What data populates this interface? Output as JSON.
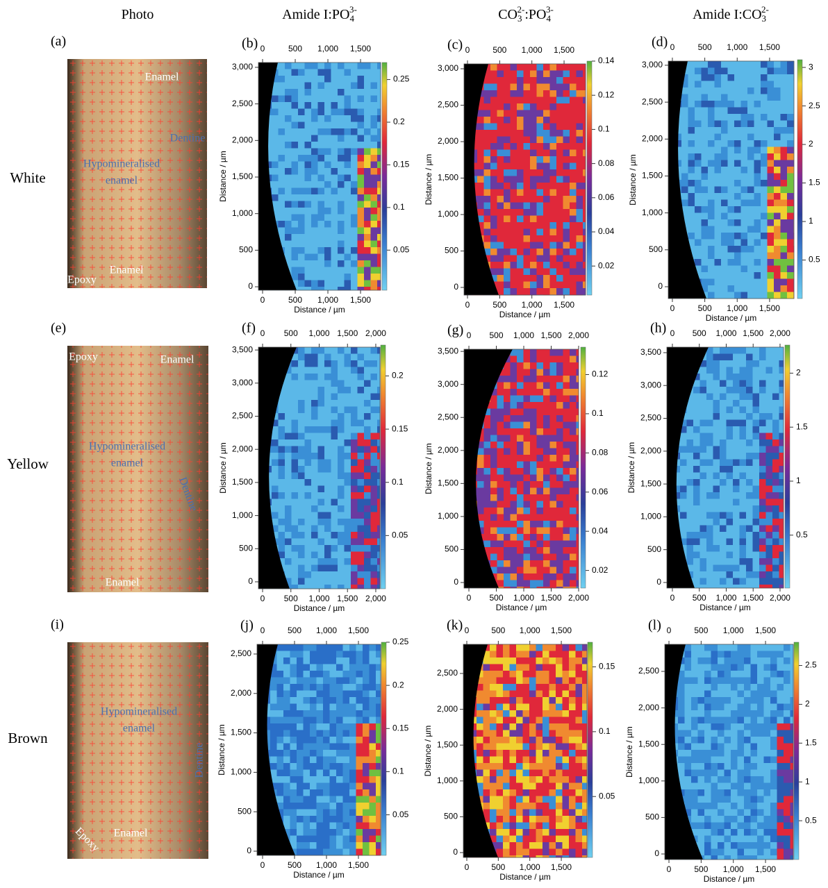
{
  "column_headers": [
    [
      {
        "text": "Photo",
        "style": "base"
      }
    ],
    [
      {
        "text": "Amide I:PO",
        "style": "base"
      },
      {
        "text": "4",
        "style": "sub"
      },
      {
        "text": "3-",
        "style": "sup"
      }
    ],
    [
      {
        "text": "CO",
        "style": "base"
      },
      {
        "text": "3",
        "style": "sub"
      },
      {
        "text": "2-",
        "style": "sup"
      },
      {
        "text": ":PO",
        "style": "base"
      },
      {
        "text": "4",
        "style": "sub"
      },
      {
        "text": "3-",
        "style": "sup"
      }
    ],
    [
      {
        "text": "Amide I:CO",
        "style": "base"
      },
      {
        "text": "3",
        "style": "sub"
      },
      {
        "text": "2-",
        "style": "sup"
      }
    ]
  ],
  "rows": [
    {
      "label": "White",
      "photo": {
        "letter": "(a)",
        "annotations": [
          "Enamel",
          "Dentine",
          "Hypomineralised",
          "enamel",
          "Enamel",
          "Epoxy"
        ]
      },
      "maps": [
        {
          "letter": "(b)",
          "xlabel": "Distance / µm",
          "ylabel": "Distance / µm",
          "xlim": [
            -64,
            1808
          ],
          "xticks": [
            0,
            500,
            {
              "value": 1000,
              "label": "1,000"
            },
            {
              "value": 1500,
              "label": "1,500"
            }
          ],
          "ylim": [
            -47,
            3066
          ],
          "yticks": [
            0,
            500,
            {
              "value": 1000,
              "label": "1,000"
            },
            {
              "value": 1500,
              "label": "1,500"
            },
            {
              "value": 2000,
              "label": "2,000"
            },
            {
              "value": 2500,
              "label": "2,500"
            },
            {
              "value": 3000,
              "label": "3,000"
            }
          ],
          "colorbar": {
            "lim": [
              0.003,
              0.27
            ],
            "ticks": [
              0.05,
              0.1,
              0.15,
              0.2,
              0.25
            ]
          }
        },
        {
          "letter": "(c)",
          "xlabel": "Distance / µm",
          "ylabel": "Distance / µm",
          "xlim": [
            -54,
            1834
          ],
          "xticks": [
            0,
            500,
            {
              "value": 1000,
              "label": "1,000"
            },
            {
              "value": 1500,
              "label": "1,500"
            }
          ],
          "ylim": [
            -105,
            3067
          ],
          "yticks": [
            0,
            500,
            {
              "value": 1000,
              "label": "1,000"
            },
            {
              "value": 1500,
              "label": "1,500"
            },
            {
              "value": 2000,
              "label": "2,000"
            },
            {
              "value": 2500,
              "label": "2,500"
            },
            {
              "value": 3000,
              "label": "3,000"
            }
          ],
          "colorbar": {
            "lim": [
              0.003,
              0.14
            ],
            "ticks": [
              0.02,
              0.04,
              0.06,
              0.08,
              0.1,
              0.12,
              0.14
            ]
          }
        },
        {
          "letter": "(d)",
          "xlabel": "Distance / µm",
          "ylabel": "Distance / µm",
          "xlim": [
            -64,
            1876
          ],
          "xticks": [
            0,
            500,
            {
              "value": 1000,
              "label": "1,000"
            },
            {
              "value": 1500,
              "label": "1,500"
            }
          ],
          "ylim": [
            -160,
            3056
          ],
          "yticks": [
            0,
            500,
            {
              "value": 1000,
              "label": "1,000"
            },
            {
              "value": 1500,
              "label": "1,500"
            },
            {
              "value": 2000,
              "label": "2,000"
            },
            {
              "value": 2500,
              "label": "2,500"
            },
            {
              "value": 3000,
              "label": "3,000"
            }
          ],
          "colorbar": {
            "lim": [
              0,
              3.1
            ],
            "ticks": [
              0.5,
              1,
              1.5,
              2,
              2.5,
              3
            ]
          }
        }
      ]
    },
    {
      "label": "Yellow",
      "photo": {
        "letter": "(e)",
        "annotations": [
          "Epoxy",
          "Enamel",
          "Hypomineralised",
          "enamel",
          "Dentine",
          "Enamel"
        ]
      },
      "maps": [
        {
          "letter": "(f)",
          "xlabel": "Distance / µm",
          "ylabel": "Distance / µm",
          "xlim": [
            -74,
            2074
          ],
          "xticks": [
            0,
            500,
            {
              "value": 1000,
              "label": "1,000"
            },
            {
              "value": 1500,
              "label": "1,500"
            },
            {
              "value": 2000,
              "label": "2,000"
            }
          ],
          "ylim": [
            -105,
            3543
          ],
          "yticks": [
            0,
            500,
            {
              "value": 1000,
              "label": "1,000"
            },
            {
              "value": 1500,
              "label": "1,500"
            },
            {
              "value": 2000,
              "label": "2,000"
            },
            {
              "value": 2500,
              "label": "2,500"
            },
            {
              "value": 3000,
              "label": "3,000"
            },
            {
              "value": 3500,
              "label": "3,500"
            }
          ],
          "colorbar": {
            "lim": [
              0,
              0.229
            ],
            "ticks": [
              0.05,
              0.1,
              0.15,
              0.2
            ]
          }
        },
        {
          "letter": "(g)",
          "xlabel": "Distance / µm",
          "ylabel": "Distance / µm",
          "xlim": [
            -89,
            2000
          ],
          "xticks": [
            0,
            500,
            {
              "value": 1000,
              "label": "1,000"
            },
            {
              "value": 1500,
              "label": "1,500"
            },
            {
              "value": 2000,
              "label": "2,000"
            }
          ],
          "ylim": [
            -84,
            3533
          ],
          "yticks": [
            0,
            500,
            {
              "value": 1000,
              "label": "1,000"
            },
            {
              "value": 1500,
              "label": "1,500"
            },
            {
              "value": 2000,
              "label": "2,000"
            },
            {
              "value": 2500,
              "label": "2,500"
            },
            {
              "value": 3000,
              "label": "3,000"
            },
            {
              "value": 3500,
              "label": "3,500"
            }
          ],
          "colorbar": {
            "lim": [
              0.011,
              0.134
            ],
            "ticks": [
              0.02,
              0.04,
              0.06,
              0.08,
              0.1,
              0.12
            ]
          }
        },
        {
          "letter": "(h)",
          "xlabel": "Distance / µm",
          "ylabel": "Distance / µm",
          "xlim": [
            -103,
            2065
          ],
          "xticks": [
            0,
            500,
            {
              "value": 1000,
              "label": "1,000"
            },
            {
              "value": 1500,
              "label": "1,500"
            },
            {
              "value": 2000,
              "label": "2,000"
            }
          ],
          "ylim": [
            -85,
            3584
          ],
          "yticks": [
            0,
            500,
            {
              "value": 1000,
              "label": "1,000"
            },
            {
              "value": 1500,
              "label": "1,500"
            },
            {
              "value": 2000,
              "label": "2,000"
            },
            {
              "value": 2500,
              "label": "2,500"
            },
            {
              "value": 3000,
              "label": "3,000"
            },
            {
              "value": 3500,
              "label": "3,500"
            }
          ],
          "colorbar": {
            "lim": [
              0.01,
              2.26
            ],
            "ticks": [
              0.5,
              1,
              1.5,
              2
            ]
          }
        }
      ]
    },
    {
      "label": "Brown",
      "photo": {
        "letter": "(i)",
        "annotations": [
          "Hypomineralised",
          "enamel",
          "Dentine",
          "Enamel",
          "Epoxy"
        ]
      },
      "maps": [
        {
          "letter": "(j)",
          "xlabel": "Distance / µm",
          "ylabel": "Distance / µm",
          "xlim": [
            -87,
            1848
          ],
          "xticks": [
            0,
            500,
            {
              "value": 1000,
              "label": "1,000"
            },
            {
              "value": 1500,
              "label": "1,500"
            }
          ],
          "ylim": [
            -53,
            2623
          ],
          "yticks": [
            0,
            500,
            {
              "value": 1000,
              "label": "1,000"
            },
            {
              "value": 1500,
              "label": "1,500"
            },
            {
              "value": 2000,
              "label": "2,000"
            },
            {
              "value": 2500,
              "label": "2,500"
            }
          ],
          "colorbar": {
            "lim": [
              0.003,
              0.25
            ],
            "ticks": [
              0.05,
              0.1,
              0.15,
              0.2,
              0.25
            ]
          }
        },
        {
          "letter": "(k)",
          "xlabel": "Distance / µm",
          "ylabel": "Distance / µm",
          "xlim": [
            -55,
            1907
          ],
          "xticks": [
            0,
            500,
            {
              "value": 1000,
              "label": "1,000"
            },
            {
              "value": 1500,
              "label": "1,500"
            }
          ],
          "ylim": [
            -68,
            2907
          ],
          "yticks": [
            0,
            500,
            {
              "value": 1000,
              "label": "1,000"
            },
            {
              "value": 1500,
              "label": "1,500"
            },
            {
              "value": 2000,
              "label": "2,000"
            },
            {
              "value": 2500,
              "label": "2,500"
            }
          ],
          "colorbar": {
            "lim": [
              0.003,
              0.169
            ],
            "ticks": [
              0.05,
              0.1,
              0.15
            ]
          }
        },
        {
          "letter": "(l)",
          "xlabel": "Distance / µm",
          "ylabel": "Distance / µm",
          "xlim": [
            -65,
            1931
          ],
          "xticks": [
            0,
            500,
            {
              "value": 1000,
              "label": "1,000"
            },
            {
              "value": 1500,
              "label": "1,500"
            }
          ],
          "ylim": [
            -76,
            2871
          ],
          "yticks": [
            0,
            500,
            {
              "value": 1000,
              "label": "1,000"
            },
            {
              "value": 1500,
              "label": "1,500"
            },
            {
              "value": 2000,
              "label": "2,000"
            },
            {
              "value": 2500,
              "label": "2,500"
            }
          ],
          "colorbar": {
            "lim": [
              0,
              2.8
            ],
            "ticks": [
              0.5,
              1,
              1.5,
              2,
              2.5
            ]
          }
        }
      ]
    }
  ]
}
